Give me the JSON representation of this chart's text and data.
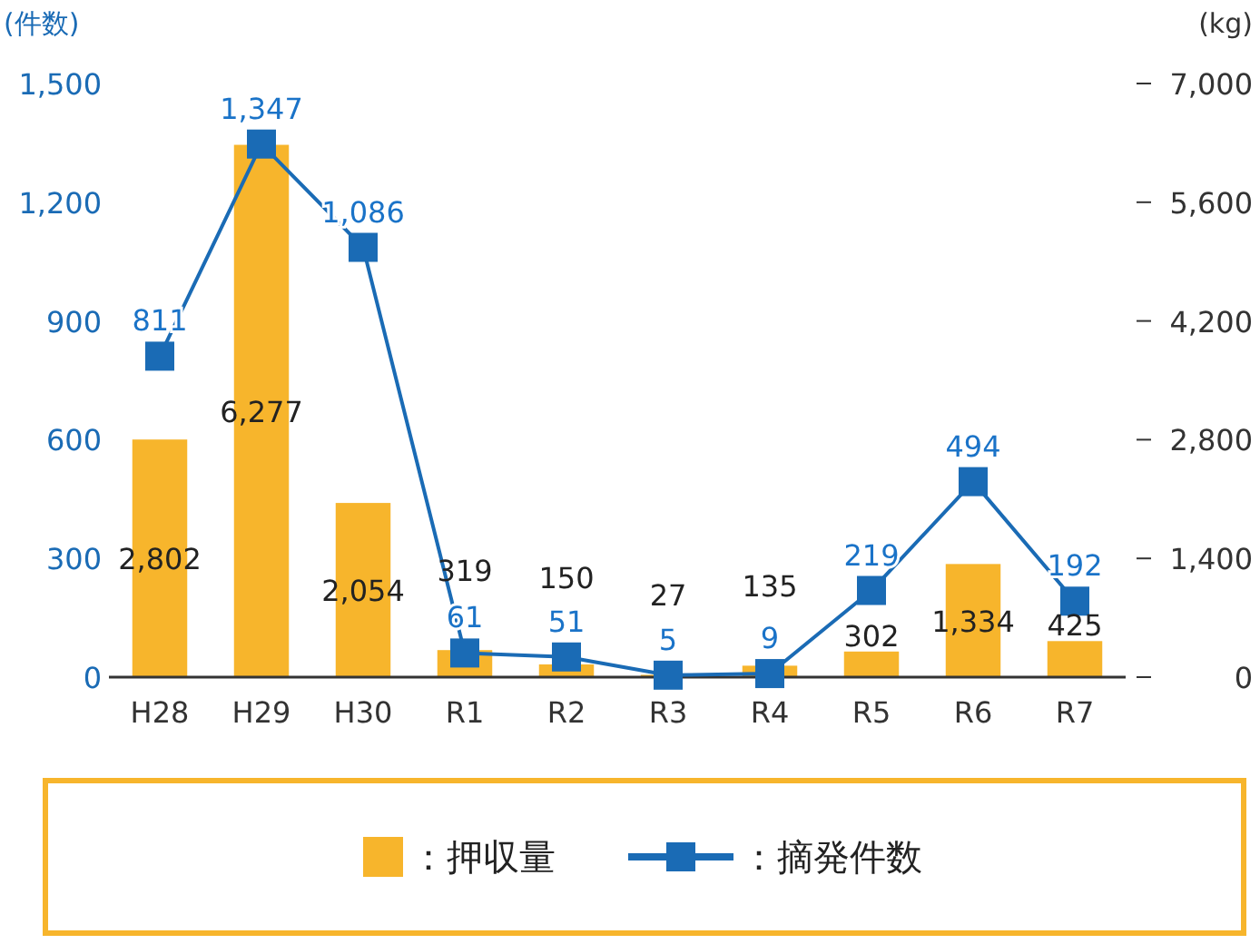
{
  "chart_data": {
    "type": "bar",
    "categories": [
      "H28",
      "H29",
      "H30",
      "R1",
      "R2",
      "R3",
      "R4",
      "R5",
      "R6",
      "R7"
    ],
    "ylabel": "(件数)",
    "y2label": "(kg)",
    "series": [
      {
        "name": "：押収量",
        "axis": "y2",
        "color": "#f7b52c",
        "values": [
          2802,
          6277,
          2054,
          319,
          150,
          27,
          135,
          302,
          1334,
          425
        ],
        "value_labels": [
          "2,802",
          "6,277",
          "2,054",
          "319",
          "150",
          "27",
          "135",
          "302",
          "1,334",
          "425"
        ]
      },
      {
        "name": "：摘発件数",
        "type": "line",
        "axis": "y",
        "color": "#1a6bb5",
        "marker": "square",
        "values": [
          811,
          1347,
          1086,
          61,
          51,
          5,
          9,
          219,
          494,
          192
        ],
        "value_labels": [
          "811",
          "1,347",
          "1,086",
          "61",
          "51",
          "5",
          "9",
          "219",
          "494",
          "192"
        ]
      }
    ],
    "ylim": [
      0,
      1500
    ],
    "yticks": [
      {
        "value": 0,
        "label": "0"
      },
      {
        "value": 300,
        "label": "300"
      },
      {
        "value": 600,
        "label": "600"
      },
      {
        "value": 900,
        "label": "900"
      },
      {
        "value": 1200,
        "label": "1,200"
      },
      {
        "value": 1500,
        "label": "1,500"
      }
    ],
    "y2lim": [
      0,
      7000
    ],
    "y2ticks": [
      {
        "value": 0,
        "label": "0"
      },
      {
        "value": 1400,
        "label": "1,400"
      },
      {
        "value": 2800,
        "label": "2,800"
      },
      {
        "value": 4200,
        "label": "4,200"
      },
      {
        "value": 5600,
        "label": "5,600"
      },
      {
        "value": 7000,
        "label": "7,000"
      }
    ],
    "legend": "bottom",
    "grid": false
  }
}
